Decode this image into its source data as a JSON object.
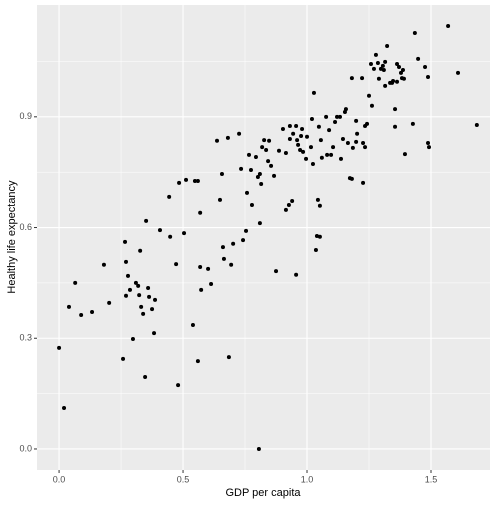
{
  "chart_data": {
    "type": "scatter",
    "x_label": "GDP per capita",
    "y_label": "Healthy life expectancy",
    "color": "#000000",
    "panel_color": "#EBEBEB",
    "grid": true,
    "xlim": [
      -0.089,
      1.738
    ],
    "ylim": [
      -0.057,
      1.203
    ],
    "xticks": [
      {
        "value": 0,
        "label": "0.0"
      },
      {
        "value": 0.5,
        "label": "0.5"
      },
      {
        "value": 1,
        "label": "1.0"
      },
      {
        "value": 1.5,
        "label": "1.5"
      }
    ],
    "yticks": [
      {
        "value": 0,
        "label": "0.0"
      },
      {
        "value": 0.3,
        "label": "0.3"
      },
      {
        "value": 0.6,
        "label": "0.6"
      },
      {
        "value": 0.9,
        "label": "0.9"
      }
    ],
    "x_minor_ticks": [
      0.25,
      0.75,
      1.25
    ],
    "y_minor_ticks": [
      0.15,
      0.45,
      0.75,
      1.05
    ],
    "x": [
      0,
      0.02,
      0.04,
      0.065,
      0.089,
      0.133,
      0.181,
      0.202,
      0.258,
      0.266,
      0.27,
      0.27,
      0.278,
      0.286,
      0.298,
      0.31,
      0.319,
      0.323,
      0.327,
      0.331,
      0.339,
      0.347,
      0.351,
      0.359,
      0.363,
      0.375,
      0.383,
      0.387,
      0.407,
      0.444,
      0.448,
      0.472,
      0.48,
      0.484,
      0.504,
      0.512,
      0.54,
      0.548,
      0.56,
      0.56,
      0.569,
      0.569,
      0.573,
      0.601,
      0.613,
      0.637,
      0.649,
      0.657,
      0.661,
      0.665,
      0.681,
      0.685,
      0.694,
      0.702,
      0.726,
      0.734,
      0.742,
      0.754,
      0.758,
      0.766,
      0.774,
      0.778,
      0.794,
      0.802,
      0.806,
      0.81,
      0.81,
      0.815,
      0.819,
      0.827,
      0.835,
      0.843,
      0.847,
      0.855,
      0.867,
      0.875,
      0.887,
      0.903,
      0.915,
      0.915,
      0.927,
      0.931,
      0.931,
      0.94,
      0.944,
      0.956,
      0.956,
      0.96,
      0.964,
      0.972,
      0.976,
      0.98,
      0.984,
      0.996,
      1.0,
      1.016,
      1.02,
      1.024,
      1.028,
      1.036,
      1.04,
      1.044,
      1.048,
      1.052,
      1.052,
      1.056,
      1.06,
      1.077,
      1.081,
      1.089,
      1.097,
      1.105,
      1.113,
      1.121,
      1.133,
      1.137,
      1.145,
      1.153,
      1.157,
      1.165,
      1.173,
      1.181,
      1.181,
      1.185,
      1.198,
      1.198,
      1.202,
      1.222,
      1.226,
      1.226,
      1.234,
      1.234,
      1.242,
      1.25,
      1.258,
      1.262,
      1.27,
      1.278,
      1.286,
      1.29,
      1.298,
      1.306,
      1.31,
      1.315,
      1.315,
      1.323,
      1.335,
      1.343,
      1.347,
      1.355,
      1.355,
      1.363,
      1.363,
      1.371,
      1.379,
      1.383,
      1.387,
      1.391,
      1.395,
      1.427,
      1.435,
      1.448,
      1.476,
      1.488,
      1.488,
      1.492,
      1.569,
      1.609,
      1.685
    ],
    "values": [
      0.274,
      0.111,
      0.385,
      0.45,
      0.363,
      0.371,
      0.499,
      0.396,
      0.244,
      0.561,
      0.507,
      0.415,
      0.469,
      0.431,
      0.298,
      0.45,
      0.442,
      0.417,
      0.537,
      0.385,
      0.366,
      0.195,
      0.618,
      0.436,
      0.412,
      0.379,
      0.314,
      0.404,
      0.593,
      0.683,
      0.575,
      0.501,
      0.173,
      0.721,
      0.585,
      0.729,
      0.336,
      0.726,
      0.726,
      0.238,
      0.64,
      0.493,
      0.431,
      0.488,
      0.447,
      0.835,
      0.675,
      0.745,
      0.547,
      0.515,
      0.843,
      0.249,
      0.499,
      0.556,
      0.854,
      0.759,
      0.566,
      0.591,
      0.694,
      0.797,
      0.756,
      0.661,
      0.791,
      0.737,
      0.0,
      0.745,
      0.612,
      0.718,
      0.818,
      0.837,
      0.81,
      0.78,
      0.835,
      0.767,
      0.74,
      0.482,
      0.808,
      0.867,
      0.802,
      0.648,
      0.661,
      0.875,
      0.84,
      0.672,
      0.854,
      0.875,
      0.472,
      0.837,
      0.824,
      0.81,
      0.848,
      0.867,
      0.805,
      0.786,
      0.846,
      0.818,
      0.894,
      0.772,
      0.965,
      0.539,
      0.577,
      0.675,
      0.873,
      0.575,
      0.659,
      0.837,
      0.789,
      0.9,
      0.797,
      0.864,
      0.797,
      0.818,
      0.886,
      0.9,
      0.9,
      0.786,
      0.84,
      0.913,
      0.921,
      0.829,
      0.734,
      0.732,
      1.005,
      0.816,
      0.832,
      0.889,
      0.854,
      1.005,
      0.721,
      0.829,
      0.818,
      0.875,
      0.881,
      0.957,
      1.043,
      0.93,
      1.03,
      1.068,
      1.046,
      1.003,
      1.03,
      1.038,
      1.027,
      0.984,
      1.049,
      1.092,
      0.992,
      0.992,
      0.997,
      0.921,
      0.873,
      0.995,
      1.043,
      1.035,
      1.019,
      1.005,
      1.027,
      1.003,
      0.799,
      0.881,
      1.127,
      1.057,
      1.035,
      1.008,
      0.829,
      0.818,
      1.146,
      1.019,
      0.878
    ]
  }
}
